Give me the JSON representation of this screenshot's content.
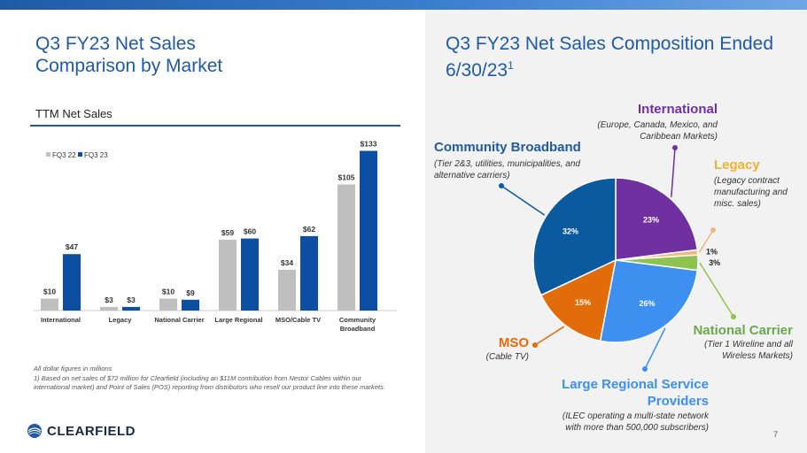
{
  "titles": {
    "left_line1": "Q3 FY23 Net Sales",
    "left_line2": "Comparison by Market",
    "right_line1": "Q3 FY23 Net Sales Composition Ended",
    "right_line2": "6/30/23",
    "right_sup": "1"
  },
  "subtitle": "TTM Net Sales",
  "footnote_line1": "All dollar figures in millions",
  "footnote_line2": "1) Based on net sales of $72 million for Clearfield (including an $11M contribution from Nestor Cables within our international market) and Point of Sales (POS) reporting from distributors who resell our product line into these markets.",
  "logo_text": "CLEARFIELD",
  "page_number": "7",
  "colors": {
    "fq3_22": "#bfbfbf",
    "fq3_23": "#0b4ea2",
    "brand_blue": "#1f5aa6"
  },
  "chart_data": [
    {
      "type": "bar",
      "title": "TTM Net Sales",
      "categories": [
        "International",
        "Legacy",
        "National Carrier",
        "Large Regional",
        "MSO/Cable TV",
        "Community Broadband"
      ],
      "series": [
        {
          "name": "FQ3 22",
          "values": [
            10,
            3,
            10,
            59,
            34,
            105
          ],
          "labels": [
            "$10",
            "$3",
            "$10",
            "$59",
            "$34",
            "$105"
          ]
        },
        {
          "name": "FQ3 23",
          "values": [
            47,
            3,
            9,
            60,
            62,
            133
          ],
          "labels": [
            "$47",
            "$3",
            "$9",
            "$60",
            "$62",
            "$133"
          ]
        }
      ],
      "ylim": [
        0,
        140
      ],
      "legend": "top-left",
      "grid": false
    },
    {
      "type": "pie",
      "title": "Q3 FY23 Net Sales Composition Ended 6/30/23",
      "slices": [
        {
          "name": "International",
          "value": 23,
          "label": "23%",
          "color": "#7030a0",
          "description": "(Europe, Canada, Mexico, and Caribbean Markets)"
        },
        {
          "name": "Legacy",
          "value": 1,
          "label": "1%",
          "color": "#f0b87a",
          "description": "(Legacy contract manufacturing and misc. sales)"
        },
        {
          "name": "National Carrier",
          "value": 3,
          "label": "3%",
          "color": "#8fc34f",
          "description": "(Tier 1 Wireline and all Wireless Markets)"
        },
        {
          "name": "Large Regional Service Providers",
          "value": 26,
          "label": "26%",
          "color": "#3d8ff0",
          "description": "(ILEC operating a multi-state network with more than 500,000 subscribers)"
        },
        {
          "name": "MSO",
          "value": 15,
          "label": "15%",
          "color": "#e36c0a",
          "description": "(Cable TV)"
        },
        {
          "name": "Community Broadband",
          "value": 32,
          "label": "32%",
          "color": "#0b5aa0",
          "description": "(Tier 2&3, utilities, municipalities, and alternative carriers)"
        }
      ]
    }
  ],
  "pie_labels": {
    "international_title": "International",
    "international_desc1": "(Europe, Canada, Mexico, and",
    "international_desc2": "Caribbean Markets)",
    "legacy_title": "Legacy",
    "legacy_desc1": "(Legacy contract",
    "legacy_desc2": "manufacturing and",
    "legacy_desc3": "misc. sales)",
    "community_title": "Community Broadband",
    "community_desc1": "(Tier 2&3, utilities, municipalities, and",
    "community_desc2": "alternative carriers)",
    "national_title": "National Carrier",
    "national_desc1": "(Tier 1 Wireline and all",
    "national_desc2": "Wireless Markets)",
    "mso_title": "MSO",
    "mso_desc": "(Cable TV)",
    "large_title1": "Large Regional Service",
    "large_title2": "Providers",
    "large_desc1": "(ILEC operating a multi-state network",
    "large_desc2": "with more than 500,000 subscribers)"
  }
}
